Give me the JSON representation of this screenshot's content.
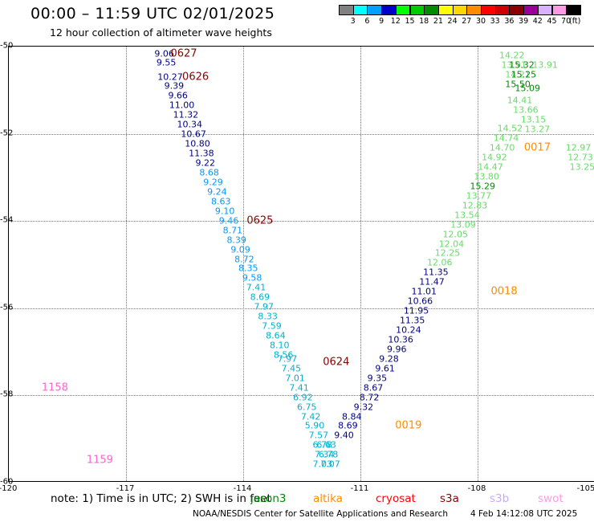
{
  "header": {
    "title": "00:00 – 11:59 UTC 02/01/2025",
    "subtitle": "12 hour collection of altimeter wave heights"
  },
  "legend": {
    "unit": "(ft)",
    "bins": [
      {
        "label": "3",
        "color": "#808080"
      },
      {
        "label": "6",
        "color": "#00ffff"
      },
      {
        "label": "9",
        "color": "#00a0ff"
      },
      {
        "label": "12",
        "color": "#0000cd"
      },
      {
        "label": "15",
        "color": "#00ff00"
      },
      {
        "label": "18",
        "color": "#00cd00"
      },
      {
        "label": "21",
        "color": "#008b00"
      },
      {
        "label": "24",
        "color": "#ffff00"
      },
      {
        "label": "27",
        "color": "#ffd700"
      },
      {
        "label": "30",
        "color": "#ff8c00"
      },
      {
        "label": "33",
        "color": "#ff0000"
      },
      {
        "label": "36",
        "color": "#cd0000"
      },
      {
        "label": "39",
        "color": "#8b0000"
      },
      {
        "label": "42",
        "color": "#9a009a"
      },
      {
        "label": "45",
        "color": "#d8b0ff"
      },
      {
        "label": "70",
        "color": "#ff99e6"
      },
      {
        "label": "",
        "color": "#000000"
      }
    ]
  },
  "axes": {
    "y_labels": [
      "-50",
      "-52",
      "-54",
      "-56",
      "-58",
      "-60"
    ],
    "x_labels": [
      "-120",
      "-117",
      "-114",
      "-111",
      "-108",
      "-105"
    ]
  },
  "tracks": [
    {
      "color": "#00008b",
      "points": [
        {
          "v": "9.06",
          "lon": -116.0,
          "lat": -50.18
        },
        {
          "v": "9.55",
          "lon": -115.95,
          "lat": -50.39
        },
        {
          "v": "10.27",
          "lon": -115.85,
          "lat": -50.71
        },
        {
          "v": "9.39",
          "lon": -115.75,
          "lat": -50.93
        },
        {
          "v": "9.66",
          "lon": -115.65,
          "lat": -51.15
        },
        {
          "v": "11.00",
          "lon": -115.55,
          "lat": -51.37
        },
        {
          "v": "11.32",
          "lon": -115.45,
          "lat": -51.59
        },
        {
          "v": "10.34",
          "lon": -115.35,
          "lat": -51.81
        },
        {
          "v": "10.67",
          "lon": -115.25,
          "lat": -52.03
        },
        {
          "v": "10.80",
          "lon": -115.15,
          "lat": -52.25
        },
        {
          "v": "11.38",
          "lon": -115.05,
          "lat": -52.47
        },
        {
          "v": "9.22",
          "lon": -114.95,
          "lat": -52.69
        }
      ]
    },
    {
      "color": "#0099ff",
      "points": [
        {
          "v": "8.68",
          "lon": -114.85,
          "lat": -52.91
        },
        {
          "v": "9.29",
          "lon": -114.75,
          "lat": -53.13
        },
        {
          "v": "9.24",
          "lon": -114.65,
          "lat": -53.35
        },
        {
          "v": "8.63",
          "lon": -114.55,
          "lat": -53.57
        },
        {
          "v": "9.10",
          "lon": -114.45,
          "lat": -53.79
        },
        {
          "v": "9.46",
          "lon": -114.35,
          "lat": -54.01
        },
        {
          "v": "8.71",
          "lon": -114.25,
          "lat": -54.23
        },
        {
          "v": "8.39",
          "lon": -114.15,
          "lat": -54.45
        },
        {
          "v": "9.09",
          "lon": -114.05,
          "lat": -54.67
        },
        {
          "v": "8.72",
          "lon": -113.95,
          "lat": -54.89
        },
        {
          "v": "8.35",
          "lon": -113.85,
          "lat": -55.11
        },
        {
          "v": "9.58",
          "lon": -113.75,
          "lat": -55.33
        }
      ]
    },
    {
      "color": "#00b0d0",
      "points": [
        {
          "v": "7.41",
          "lon": -113.65,
          "lat": -55.55
        },
        {
          "v": "8.69",
          "lon": -113.55,
          "lat": -55.77
        },
        {
          "v": "7.97",
          "lon": -113.45,
          "lat": -55.99
        },
        {
          "v": "8.33",
          "lon": -113.35,
          "lat": -56.21
        },
        {
          "v": "7.59",
          "lon": -113.25,
          "lat": -56.43
        },
        {
          "v": "8.64",
          "lon": -113.15,
          "lat": -56.65
        },
        {
          "v": "8.10",
          "lon": -113.05,
          "lat": -56.87
        },
        {
          "v": "8.56",
          "lon": -112.95,
          "lat": -57.09
        },
        {
          "v": "7.97",
          "lon": -112.85,
          "lat": -57.18
        },
        {
          "v": "7.45",
          "lon": -112.75,
          "lat": -57.4
        },
        {
          "v": "7.01",
          "lon": -112.65,
          "lat": -57.62
        },
        {
          "v": "7.41",
          "lon": -112.55,
          "lat": -57.84
        },
        {
          "v": "6.92",
          "lon": -112.45,
          "lat": -58.06
        },
        {
          "v": "6.75",
          "lon": -112.35,
          "lat": -58.28
        },
        {
          "v": "7.42",
          "lon": -112.25,
          "lat": -58.5
        },
        {
          "v": "5.90",
          "lon": -112.15,
          "lat": -58.72
        },
        {
          "v": "7.57",
          "lon": -112.05,
          "lat": -58.94
        },
        {
          "v": "6.78",
          "lon": -111.95,
          "lat": -59.16
        },
        {
          "v": "6.63",
          "lon": -111.85,
          "lat": -59.16
        },
        {
          "v": "7.34",
          "lon": -111.9,
          "lat": -59.38
        },
        {
          "v": "6.78",
          "lon": -111.8,
          "lat": -59.38
        },
        {
          "v": "7.03",
          "lon": -111.95,
          "lat": -59.6
        },
        {
          "v": "7.07",
          "lon": -111.75,
          "lat": -59.6
        }
      ]
    },
    {
      "color": "#00008b",
      "points": [
        {
          "v": "9.40",
          "lon": -111.4,
          "lat": -58.94
        },
        {
          "v": "8.69",
          "lon": -111.3,
          "lat": -58.72
        },
        {
          "v": "8.84",
          "lon": -111.2,
          "lat": -58.5
        },
        {
          "v": "9.32",
          "lon": -110.9,
          "lat": -58.28
        },
        {
          "v": "8.72",
          "lon": -110.75,
          "lat": -58.06
        },
        {
          "v": "8.67",
          "lon": -110.65,
          "lat": -57.84
        },
        {
          "v": "9.35",
          "lon": -110.55,
          "lat": -57.62
        },
        {
          "v": "9.61",
          "lon": -110.35,
          "lat": -57.4
        },
        {
          "v": "9.28",
          "lon": -110.25,
          "lat": -57.18
        },
        {
          "v": "9.96",
          "lon": -110.05,
          "lat": -56.96
        },
        {
          "v": "10.36",
          "lon": -109.95,
          "lat": -56.74
        },
        {
          "v": "10.24",
          "lon": -109.75,
          "lat": -56.52
        },
        {
          "v": "11.35",
          "lon": -109.65,
          "lat": -56.3
        },
        {
          "v": "11.95",
          "lon": -109.55,
          "lat": -56.08
        },
        {
          "v": "10.66",
          "lon": -109.45,
          "lat": -55.86
        },
        {
          "v": "11.01",
          "lon": -109.35,
          "lat": -55.64
        },
        {
          "v": "11.47",
          "lon": -109.15,
          "lat": -55.42
        },
        {
          "v": "11.35",
          "lon": -109.05,
          "lat": -55.2
        }
      ]
    },
    {
      "color": "#66dd66",
      "points": [
        {
          "v": "12.06",
          "lon": -108.95,
          "lat": -54.98
        },
        {
          "v": "12.25",
          "lon": -108.75,
          "lat": -54.76
        },
        {
          "v": "12.04",
          "lon": -108.65,
          "lat": -54.54
        },
        {
          "v": "12.05",
          "lon": -108.55,
          "lat": -54.32
        },
        {
          "v": "13.09",
          "lon": -108.35,
          "lat": -54.1
        },
        {
          "v": "13.54",
          "lon": -108.25,
          "lat": -53.88
        },
        {
          "v": "12.83",
          "lon": -108.05,
          "lat": -53.66
        },
        {
          "v": "13.77",
          "lon": -107.95,
          "lat": -53.44
        },
        {
          "v": "13.80",
          "lon": -107.75,
          "lat": -53.0
        },
        {
          "v": "14.47",
          "lon": -107.65,
          "lat": -52.78
        },
        {
          "v": "14.92",
          "lon": -107.55,
          "lat": -52.56
        },
        {
          "v": "14.70",
          "lon": -107.35,
          "lat": -52.34
        },
        {
          "v": "14.74",
          "lon": -107.25,
          "lat": -52.12
        },
        {
          "v": "14.52",
          "lon": -107.15,
          "lat": -51.9
        },
        {
          "v": "14.22",
          "lon": -107.1,
          "lat": -50.22
        },
        {
          "v": "13.91",
          "lon": -107.05,
          "lat": -50.44
        },
        {
          "v": "14.21",
          "lon": -106.95,
          "lat": -50.66
        },
        {
          "v": "14.41",
          "lon": -106.9,
          "lat": -51.26
        },
        {
          "v": "13.66",
          "lon": -106.75,
          "lat": -51.48
        },
        {
          "v": "13.15",
          "lon": -106.55,
          "lat": -51.7
        },
        {
          "v": "13.27",
          "lon": -106.45,
          "lat": -51.92
        },
        {
          "v": "13.91",
          "lon": -106.25,
          "lat": -50.44
        },
        {
          "v": "12.97",
          "lon": -105.4,
          "lat": -52.34
        },
        {
          "v": "12.73",
          "lon": -105.35,
          "lat": -52.56
        },
        {
          "v": "13.25",
          "lon": -105.3,
          "lat": -52.78
        }
      ]
    },
    {
      "color": "#008b00",
      "points": [
        {
          "v": "15.29",
          "lon": -107.85,
          "lat": -53.22
        },
        {
          "v": "15.32",
          "lon": -106.85,
          "lat": -50.44
        },
        {
          "v": "15.25",
          "lon": -106.8,
          "lat": -50.66
        },
        {
          "v": "15.50",
          "lon": -106.95,
          "lat": -50.88
        },
        {
          "v": "15.09",
          "lon": -106.7,
          "lat": -50.98
        }
      ]
    }
  ],
  "track_labels": [
    {
      "text": "0627",
      "color": "#8b0000",
      "lon": -115.5,
      "lat": -50.19
    },
    {
      "text": "0626",
      "color": "#8b0000",
      "lon": -115.2,
      "lat": -50.71
    },
    {
      "text": "0625",
      "color": "#8b0000",
      "lon": -113.55,
      "lat": -54.02
    },
    {
      "text": "0624",
      "color": "#8b0000",
      "lon": -111.6,
      "lat": -57.25
    },
    {
      "text": "1158",
      "color": "#ff66cc",
      "lon": -118.8,
      "lat": -57.84
    },
    {
      "text": "1159",
      "color": "#ff66cc",
      "lon": -117.65,
      "lat": -59.5
    },
    {
      "text": "0018",
      "color": "#ff8c00",
      "lon": -107.3,
      "lat": -55.64
    },
    {
      "text": "0019",
      "color": "#ff8c00",
      "lon": -109.75,
      "lat": -58.72
    },
    {
      "text": "0017",
      "color": "#ff8c00",
      "lon": -106.45,
      "lat": -52.34
    }
  ],
  "footer": {
    "note": "note:  1) Time is in UTC; 2) SWH is in feet",
    "satellites": [
      {
        "name": "jason3",
        "color": "#008b00"
      },
      {
        "name": "altika",
        "color": "#ff8c00"
      },
      {
        "name": "cryosat",
        "color": "#ff0000"
      },
      {
        "name": "s3a",
        "color": "#8b0000"
      },
      {
        "name": "s3b",
        "color": "#c8a8ff"
      },
      {
        "name": "swot",
        "color": "#ff99e6"
      }
    ],
    "credit": "NOAA/NESDIS Center for Satellite Applications and Research",
    "timestamp": "4 Feb 14:12:08 UTC 2025"
  }
}
